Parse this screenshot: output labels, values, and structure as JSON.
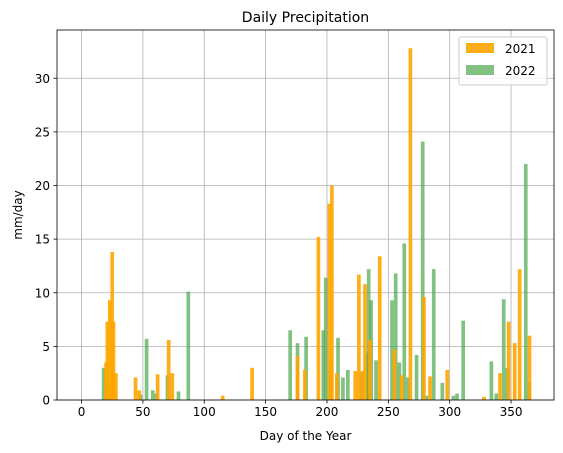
{
  "chart_data": {
    "type": "bar",
    "title": "Daily Precipitation",
    "xlabel": "Day of the Year",
    "ylabel": "mm/day",
    "xlim": [
      -20,
      385
    ],
    "ylim": [
      0,
      34.5
    ],
    "xticks": [
      0,
      50,
      100,
      150,
      200,
      250,
      300,
      350
    ],
    "yticks": [
      0,
      5,
      10,
      15,
      20,
      25,
      30
    ],
    "grid": true,
    "legend_position": "top-right",
    "bar_width_days": 3,
    "series": [
      {
        "name": "2021",
        "color": "#ffa500",
        "opacity": 0.9,
        "points": [
          [
            20,
            3.5
          ],
          [
            21,
            7.3
          ],
          [
            23,
            9.3
          ],
          [
            25,
            13.8
          ],
          [
            26,
            7.3
          ],
          [
            28,
            2.5
          ],
          [
            44,
            2.1
          ],
          [
            47,
            0.9
          ],
          [
            62,
            2.4
          ],
          [
            71,
            5.6
          ],
          [
            74,
            2.5
          ],
          [
            115,
            0.4
          ],
          [
            139,
            3.0
          ],
          [
            176,
            4.1
          ],
          [
            182,
            2.8
          ],
          [
            193,
            15.2
          ],
          [
            202,
            18.3
          ],
          [
            204,
            20.0
          ],
          [
            208,
            2.5
          ],
          [
            223,
            2.7
          ],
          [
            226,
            11.7
          ],
          [
            229,
            2.7
          ],
          [
            231,
            10.8
          ],
          [
            235,
            5.6
          ],
          [
            243,
            13.4
          ],
          [
            255,
            4.7
          ],
          [
            261,
            2.3
          ],
          [
            268,
            32.8
          ],
          [
            279,
            9.6
          ],
          [
            284,
            2.2
          ],
          [
            298,
            2.8
          ],
          [
            328,
            0.3
          ],
          [
            341,
            2.5
          ],
          [
            348,
            7.3
          ],
          [
            353,
            5.3
          ],
          [
            357,
            12.2
          ],
          [
            365,
            6.0
          ]
        ]
      },
      {
        "name": "2022",
        "color": "#4ca64c",
        "opacity": 0.7,
        "points": [
          [
            18,
            3.0
          ],
          [
            22,
            1.2
          ],
          [
            48,
            0.5
          ],
          [
            53,
            5.7
          ],
          [
            58,
            0.9
          ],
          [
            61,
            0.6
          ],
          [
            70,
            2.3
          ],
          [
            79,
            0.8
          ],
          [
            87,
            10.1
          ],
          [
            170,
            6.5
          ],
          [
            176,
            5.3
          ],
          [
            183,
            5.9
          ],
          [
            197,
            6.5
          ],
          [
            199,
            11.4
          ],
          [
            203,
            3.8
          ],
          [
            209,
            5.8
          ],
          [
            213,
            2.1
          ],
          [
            217,
            2.8
          ],
          [
            228,
            2.5
          ],
          [
            233,
            4.4
          ],
          [
            234,
            12.2
          ],
          [
            236,
            9.3
          ],
          [
            240,
            3.7
          ],
          [
            253,
            9.3
          ],
          [
            256,
            11.8
          ],
          [
            259,
            3.5
          ],
          [
            263,
            14.6
          ],
          [
            266,
            2.1
          ],
          [
            273,
            4.2
          ],
          [
            278,
            24.1
          ],
          [
            281,
            0.4
          ],
          [
            287,
            12.2
          ],
          [
            294,
            1.6
          ],
          [
            303,
            0.4
          ],
          [
            306,
            0.6
          ],
          [
            311,
            7.4
          ],
          [
            334,
            3.6
          ],
          [
            338,
            0.6
          ],
          [
            344,
            9.4
          ],
          [
            347,
            3.0
          ],
          [
            362,
            22.0
          ],
          [
            365,
            1.7
          ]
        ]
      }
    ]
  }
}
